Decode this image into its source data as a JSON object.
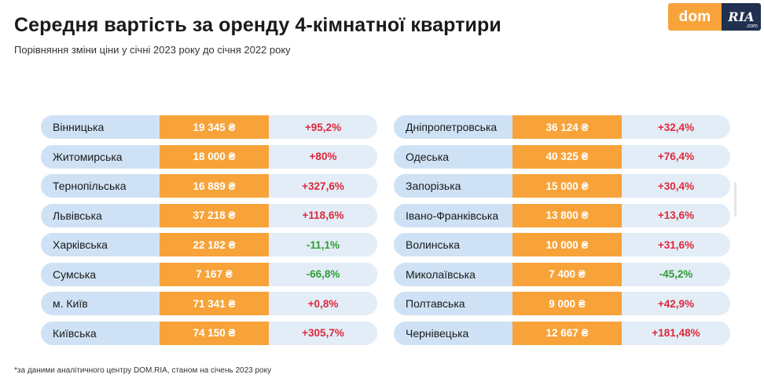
{
  "header": {
    "title": "Середня вартість за оренду 4-кімнатної квартири",
    "subtitle": "Порівняння зміни ціни у січні 2023 року до січня 2022 року"
  },
  "logo": {
    "dom": "dom",
    "ria": "RIA",
    "com": ".com"
  },
  "colors": {
    "orange": "#f7a33a",
    "light_blue": "#cfe2f5",
    "red": "#e0283a",
    "green": "#2f9e35",
    "navy": "#1f3050"
  },
  "left_table": [
    {
      "region": "Вінницька",
      "price": "19 345 ₴",
      "change": "+95,2%",
      "trend": "up"
    },
    {
      "region": "Житомирська",
      "price": "18 000 ₴",
      "change": "+80%",
      "trend": "up"
    },
    {
      "region": "Тернопільська",
      "price": "16 889 ₴",
      "change": "+327,6%",
      "trend": "up"
    },
    {
      "region": "Львівська",
      "price": "37 218 ₴",
      "change": "+118,6%",
      "trend": "up"
    },
    {
      "region": "Харківська",
      "price": "22 182 ₴",
      "change": "-11,1%",
      "trend": "down"
    },
    {
      "region": "Сумська",
      "price": "7 167 ₴",
      "change": "-66,8%",
      "trend": "down"
    },
    {
      "region": "м. Київ",
      "price": "71 341 ₴",
      "change": "+0,8%",
      "trend": "up"
    },
    {
      "region": "Київська",
      "price": "74 150 ₴",
      "change": "+305,7%",
      "trend": "up"
    }
  ],
  "right_table": [
    {
      "region": "Дніпропетровська",
      "price": "36 124 ₴",
      "change": "+32,4%",
      "trend": "up"
    },
    {
      "region": "Одеська",
      "price": "40 325 ₴",
      "change": "+76,4%",
      "trend": "up"
    },
    {
      "region": "Запорізька",
      "price": "15 000 ₴",
      "change": "+30,4%",
      "trend": "up"
    },
    {
      "region": "Івано-Франківська",
      "price": "13 800 ₴",
      "change": "+13,6%",
      "trend": "up"
    },
    {
      "region": "Волинська",
      "price": "10 000 ₴",
      "change": "+31,6%",
      "trend": "up"
    },
    {
      "region": "Миколаївська",
      "price": "7 400 ₴",
      "change": "-45,2%",
      "trend": "down"
    },
    {
      "region": "Полтавська",
      "price": "9 000 ₴",
      "change": "+42,9%",
      "trend": "up"
    },
    {
      "region": "Чернівецька",
      "price": "12 667 ₴",
      "change": "+181,48%",
      "trend": "up"
    }
  ],
  "footnote": "*за даними аналітичного центру DOM.RIA, станом на січень 2023 року"
}
